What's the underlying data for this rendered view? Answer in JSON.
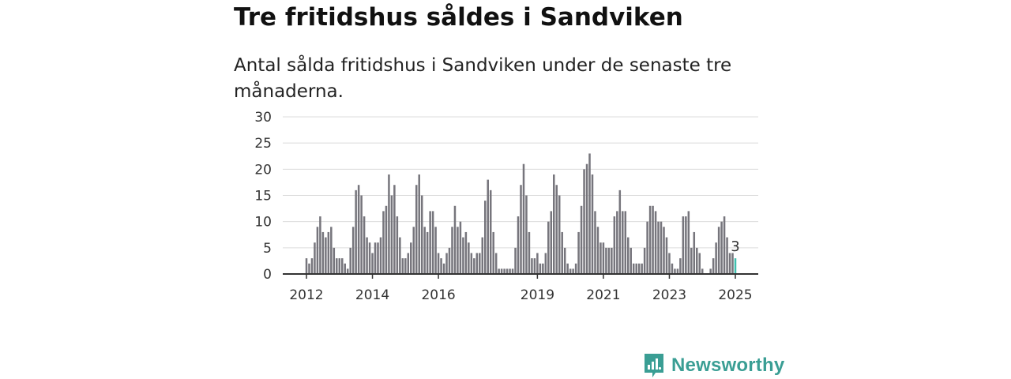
{
  "header": {
    "title": "Tre fritidshus såldes i Sandviken",
    "subtitle": "Antal sålda fritidshus i Sandviken under de senaste tre månaderna."
  },
  "brand": {
    "name": "Newsworthy",
    "icon": "newsworthy-logo-icon",
    "color": "#3a9e94"
  },
  "chart_data": {
    "type": "bar",
    "title": "",
    "xlabel": "",
    "ylabel": "",
    "x_ticks": [
      "2012",
      "2014",
      "2016",
      "2019",
      "2021",
      "2023",
      "2025"
    ],
    "y_ticks": [
      "0",
      "5",
      "10",
      "15",
      "20",
      "25",
      "30"
    ],
    "ylim": [
      0,
      30
    ],
    "grid": true,
    "colors": {
      "bars": "#76757c",
      "highlight": "#3fbfae",
      "grid": "#dcdcdc",
      "axis": "#333333"
    },
    "annotation": {
      "label": "3",
      "target": "last-bar"
    },
    "series": [
      {
        "values": [
          3,
          2,
          3,
          6,
          9,
          11,
          8,
          7,
          8,
          9,
          5,
          3,
          3,
          3,
          2,
          1,
          5,
          9,
          16,
          17,
          15,
          11,
          7,
          6,
          4,
          6,
          6,
          7,
          12,
          13,
          19,
          15,
          17,
          11,
          7,
          3,
          3,
          4,
          6,
          9,
          17,
          19,
          15,
          9,
          8,
          12,
          12,
          9,
          4,
          3,
          2,
          4,
          5,
          9,
          13,
          9,
          10,
          7,
          8,
          6,
          4,
          3,
          4,
          4,
          7,
          14,
          18,
          16,
          8,
          4,
          1,
          1,
          1,
          1,
          1,
          1,
          5,
          11,
          17,
          21,
          15,
          8,
          3,
          3,
          4,
          2,
          2,
          4,
          10,
          12,
          19,
          17,
          15,
          8,
          5,
          2,
          1,
          1,
          2,
          8,
          13,
          20,
          21,
          23,
          19,
          12,
          9,
          6,
          6,
          5,
          5,
          5,
          11,
          12,
          16,
          12,
          12,
          7,
          5,
          2,
          2,
          2,
          2,
          5,
          10,
          13,
          13,
          12,
          10,
          10,
          9,
          7,
          4,
          2,
          1,
          1,
          3,
          11,
          11,
          12,
          5,
          8,
          5,
          4,
          1,
          0,
          0,
          1,
          3,
          6,
          9,
          10,
          11,
          7,
          4,
          4,
          3
        ]
      }
    ]
  }
}
